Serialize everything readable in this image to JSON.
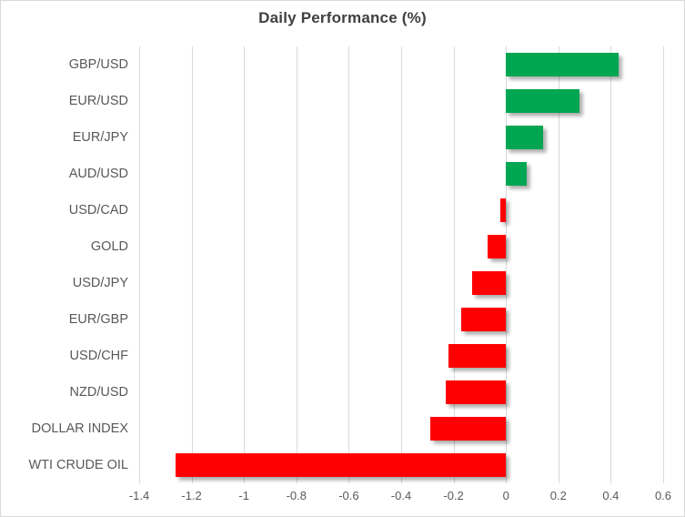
{
  "chart_data": {
    "type": "bar",
    "orientation": "horizontal",
    "title": "Daily Performance (%)",
    "categories": [
      "GBP/USD",
      "EUR/USD",
      "EUR/JPY",
      "AUD/USD",
      "USD/CAD",
      "GOLD",
      "USD/JPY",
      "EUR/GBP",
      "USD/CHF",
      "NZD/USD",
      "DOLLAR INDEX",
      "WTI CRUDE OIL"
    ],
    "values": [
      0.43,
      0.28,
      0.14,
      0.08,
      -0.02,
      -0.07,
      -0.13,
      -0.17,
      -0.22,
      -0.23,
      -0.29,
      -1.26
    ],
    "xlabel": "",
    "ylabel": "",
    "xlim": [
      -1.4,
      0.6
    ],
    "x_ticks": [
      "-1.4",
      "-1.2",
      "-1",
      "-0.8",
      "-0.6",
      "-0.4",
      "-0.2",
      "0",
      "0.2",
      "0.4",
      "0.6"
    ],
    "x_tick_values": [
      -1.4,
      -1.2,
      -1.0,
      -0.8,
      -0.6,
      -0.4,
      -0.2,
      0,
      0.2,
      0.4,
      0.6
    ],
    "grid": true,
    "legend": "none",
    "colors": {
      "positive": "#00a651",
      "negative": "#ff0000",
      "gridline": "#d9d9d9",
      "axis_label": "#595959",
      "title": "#404040"
    }
  }
}
